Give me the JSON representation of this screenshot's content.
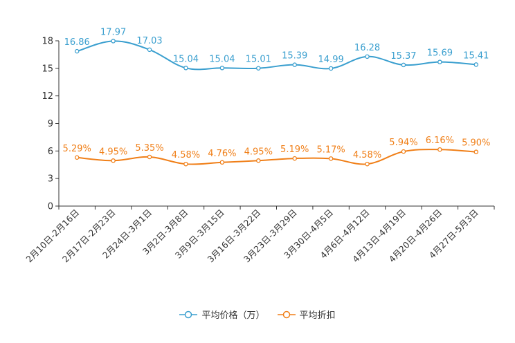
{
  "chart_data": {
    "type": "line",
    "categories": [
      "2月10日-2月16日",
      "2月17日-2月23日",
      "2月24日-3月1日",
      "3月2日-3月8日",
      "3月9日-3月15日",
      "3月16日-3月22日",
      "3月23日-3月29日",
      "3月30日-4月5日",
      "4月6日-4月12日",
      "4月13日-4月19日",
      "4月20日-4月26日",
      "4月27日-5月3日"
    ],
    "series": [
      {
        "name": "平均价格（万）",
        "color": "#3a9fcf",
        "values": [
          16.86,
          17.97,
          17.03,
          15.04,
          15.04,
          15.01,
          15.39,
          14.99,
          16.28,
          15.37,
          15.69,
          15.41
        ],
        "labels": [
          "16.86",
          "17.97",
          "17.03",
          "15.04",
          "15.04",
          "15.01",
          "15.39",
          "14.99",
          "16.28",
          "15.37",
          "15.69",
          "15.41"
        ]
      },
      {
        "name": "平均折扣",
        "color": "#f07f18",
        "values": [
          5.29,
          4.95,
          5.35,
          4.58,
          4.76,
          4.95,
          5.19,
          5.17,
          4.58,
          5.94,
          6.16,
          5.9
        ],
        "labels": [
          "5.29%",
          "4.95%",
          "5.35%",
          "4.58%",
          "4.76%",
          "4.95%",
          "5.19%",
          "5.17%",
          "4.58%",
          "5.94%",
          "6.16%",
          "5.90%"
        ]
      }
    ],
    "yticks": [
      "0",
      "3",
      "6",
      "9",
      "12",
      "15",
      "18"
    ],
    "ylim": [
      0,
      18
    ],
    "title": "",
    "xlabel": "",
    "ylabel": "",
    "legend_position": "bottom-center",
    "grid": false
  }
}
